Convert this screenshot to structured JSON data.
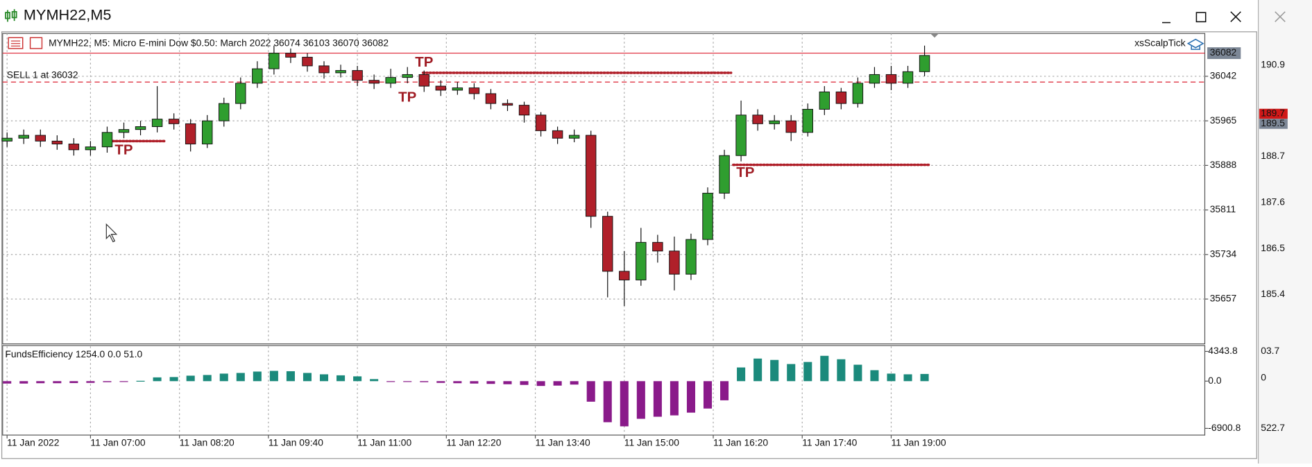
{
  "window": {
    "title": "MYMH22,M5"
  },
  "chart_data": [
    {
      "type": "candlestick",
      "header": "MYMH22, M5:  Micro E-mini Dow $0.50: March 2022  36074 36103 36070 36082",
      "expert": "xsScalpTick",
      "x": [
        345,
        360,
        375,
        390,
        405,
        420,
        435,
        450,
        465,
        480,
        495,
        510,
        525,
        540,
        555,
        570,
        585,
        600,
        615,
        630,
        645,
        660,
        675,
        690,
        705,
        720,
        735,
        750,
        765,
        780,
        795,
        810,
        825,
        840,
        855,
        870,
        885,
        900,
        915,
        930,
        945,
        960,
        975,
        990,
        1005,
        1020,
        1035,
        1050,
        1065,
        1080,
        1095,
        1110,
        1125,
        1140,
        1155,
        1170
      ],
      "open": [
        35930,
        35935,
        35940,
        35930,
        35925,
        35915,
        35920,
        35945,
        35950,
        35955,
        35968,
        35960,
        35925,
        35965,
        35995,
        36030,
        36055,
        36082,
        36075,
        36060,
        36048,
        36052,
        36035,
        36030,
        36040,
        36045,
        36025,
        36018,
        36022,
        36012,
        35995,
        35992,
        35975,
        35948,
        35935,
        35940,
        35800,
        35705,
        35690,
        35755,
        35740,
        35700,
        35760,
        35840,
        35905,
        35975,
        35960,
        35965,
        35945,
        35985,
        36015,
        35995,
        36030,
        36045,
        36030,
        36050
      ],
      "high": [
        35945,
        35950,
        35950,
        35940,
        35935,
        35930,
        35955,
        35962,
        35965,
        36025,
        35978,
        35968,
        35975,
        36005,
        36040,
        36068,
        36095,
        36090,
        36082,
        36068,
        36062,
        36060,
        36045,
        36055,
        36058,
        36052,
        36035,
        36032,
        36030,
        36020,
        36002,
        35998,
        35980,
        35955,
        35950,
        35948,
        35808,
        35740,
        35780,
        35768,
        35765,
        35770,
        35850,
        35915,
        36000,
        35985,
        35975,
        35975,
        35995,
        36025,
        36022,
        36040,
        36058,
        36060,
        36060,
        36095
      ],
      "low": [
        35920,
        35925,
        35920,
        35915,
        35905,
        35905,
        35910,
        35935,
        35940,
        35945,
        35950,
        35912,
        35918,
        35955,
        35985,
        36022,
        36045,
        36065,
        36050,
        36038,
        36040,
        36025,
        36020,
        36022,
        36030,
        36015,
        36008,
        36010,
        36002,
        35985,
        35982,
        35962,
        35938,
        35925,
        35928,
        35780,
        35660,
        35645,
        35680,
        35720,
        35672,
        35690,
        35750,
        35830,
        35895,
        35948,
        35950,
        35930,
        35938,
        35975,
        35985,
        35988,
        36022,
        36018,
        36022,
        36042
      ],
      "close": [
        35935,
        35940,
        35930,
        35925,
        35915,
        35920,
        35945,
        35950,
        35955,
        35968,
        35960,
        35925,
        35965,
        35995,
        36030,
        36055,
        36082,
        36075,
        36060,
        36048,
        36052,
        36035,
        36030,
        36040,
        36045,
        36025,
        36018,
        36022,
        36012,
        35995,
        35992,
        35975,
        35948,
        35935,
        35940,
        35800,
        35705,
        35690,
        35755,
        35740,
        35700,
        35760,
        35840,
        35905,
        35975,
        35960,
        35965,
        35945,
        35985,
        36015,
        35995,
        36030,
        36045,
        36030,
        36050,
        36078
      ],
      "up_color": "#2f9e2f",
      "down_color": "#b0202a",
      "xlim": [
        341,
        1422
      ],
      "xticks": [
        {
          "value": 345,
          "label": "11 Jan 2022"
        },
        {
          "value": 420,
          "label": "11 Jan 07:00"
        },
        {
          "value": 500,
          "label": "11 Jan 08:20"
        },
        {
          "value": 580,
          "label": "11 Jan 09:40"
        },
        {
          "value": 660,
          "label": "11 Jan 11:00"
        },
        {
          "value": 740,
          "label": "11 Jan 12:20"
        },
        {
          "value": 820,
          "label": "11 Jan 13:40"
        },
        {
          "value": 900,
          "label": "11 Jan 15:00"
        },
        {
          "value": 980,
          "label": "11 Jan 16:20"
        },
        {
          "value": 1060,
          "label": "11 Jan 17:40"
        },
        {
          "value": 1140,
          "label": "11 Jan 19:00"
        }
      ],
      "ylim": [
        35581,
        36116
      ],
      "yticks": [
        36042,
        35965,
        35888,
        35811,
        35734,
        35657
      ],
      "grid": true,
      "current_price": 36082,
      "sell_label": "SELL 1 at 36032",
      "sell_level": 36032,
      "tp_levels": [
        {
          "value": 36048,
          "x": [
            719,
            996
          ]
        },
        {
          "value": 35930,
          "x": [
            440,
            488
          ]
        },
        {
          "value": 35889,
          "x": [
            998,
            1175
          ]
        }
      ],
      "annotations": [
        "TP",
        "TP",
        "TP",
        "TP"
      ]
    },
    {
      "type": "bar",
      "title": "FundsEfficiency 1254.0 0.0 51.0",
      "values": [
        -350,
        -350,
        -300,
        -300,
        -280,
        -250,
        -150,
        -50,
        50,
        550,
        600,
        800,
        900,
        1100,
        1200,
        1400,
        1500,
        1450,
        1200,
        1000,
        850,
        700,
        300,
        -50,
        -100,
        -150,
        -250,
        -300,
        -350,
        -400,
        -450,
        -550,
        -700,
        -650,
        -500,
        -3000,
        -6000,
        -6600,
        -5500,
        -5200,
        -5000,
        -4600,
        -4000,
        -2800,
        2000,
        3300,
        3100,
        2500,
        2800,
        3700,
        3200,
        2400,
        1600,
        1100,
        1000,
        1050
      ],
      "positive_color": "#1b8a7c",
      "negative_color": "#8a1a8a",
      "ylim": [
        -6900.8,
        4343.8
      ],
      "yticks": [
        {
          "value": 4343.8,
          "label": "4343.8"
        },
        {
          "value": 0,
          "label": "0.0"
        },
        {
          "value": -6900.8,
          "label": "-6900.8"
        }
      ]
    }
  ],
  "side_panel": {
    "labels": [
      "190.9",
      "188.7",
      "187.6",
      "186.5",
      "185.4",
      "03.7",
      "0",
      "522.7"
    ],
    "price_boxes": [
      "189.7",
      "189.5"
    ]
  }
}
